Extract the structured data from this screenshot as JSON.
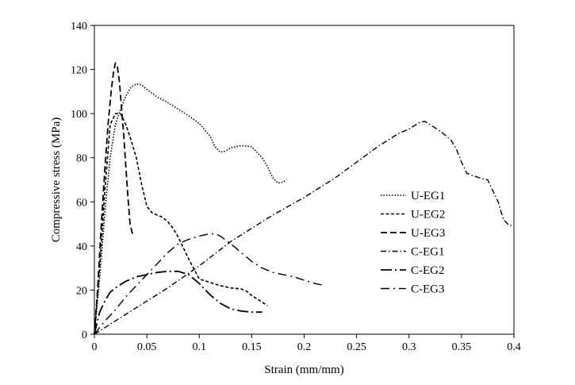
{
  "chart_data": {
    "type": "line",
    "title": "",
    "xlabel": "Strain (mm/mm)",
    "ylabel": "Compressive stress (MPa)",
    "xlim": [
      0,
      0.4
    ],
    "ylim": [
      0,
      140
    ],
    "xticks": [
      0,
      0.05,
      0.1,
      0.15,
      0.2,
      0.25,
      0.3,
      0.35,
      0.4
    ],
    "xtick_labels": [
      "0",
      "0.05",
      "0.1",
      "0.15",
      "0.2",
      "0.25",
      "0.3",
      "0.35",
      "0.4"
    ],
    "yticks": [
      0,
      20,
      40,
      60,
      80,
      100,
      120,
      140
    ],
    "ytick_labels": [
      "0",
      "20",
      "40",
      "60",
      "80",
      "100",
      "120",
      "140"
    ],
    "grid": false,
    "legend_position": "right",
    "line_color": "#000000",
    "series": [
      {
        "name": "U-EG1",
        "dash": "dotted",
        "points": [
          [
            0,
            0
          ],
          [
            0.005,
            25
          ],
          [
            0.01,
            55
          ],
          [
            0.015,
            80
          ],
          [
            0.02,
            95
          ],
          [
            0.025,
            102
          ],
          [
            0.03,
            108
          ],
          [
            0.035,
            112
          ],
          [
            0.04,
            113.5
          ],
          [
            0.045,
            113
          ],
          [
            0.05,
            111
          ],
          [
            0.06,
            107.5
          ],
          [
            0.07,
            105
          ],
          [
            0.08,
            102
          ],
          [
            0.09,
            99
          ],
          [
            0.1,
            95.5
          ],
          [
            0.11,
            90
          ],
          [
            0.115,
            85
          ],
          [
            0.12,
            82.5
          ],
          [
            0.125,
            83
          ],
          [
            0.13,
            84.5
          ],
          [
            0.14,
            85.5
          ],
          [
            0.15,
            85
          ],
          [
            0.16,
            80
          ],
          [
            0.165,
            76
          ],
          [
            0.17,
            71
          ],
          [
            0.175,
            68.5
          ],
          [
            0.18,
            69
          ],
          [
            0.183,
            70
          ]
        ]
      },
      {
        "name": "U-EG2",
        "dash": "dashed",
        "points": [
          [
            0,
            0
          ],
          [
            0.005,
            30
          ],
          [
            0.01,
            65
          ],
          [
            0.015,
            95
          ],
          [
            0.02,
            100
          ],
          [
            0.025,
            100
          ],
          [
            0.03,
            95
          ],
          [
            0.035,
            88
          ],
          [
            0.04,
            80
          ],
          [
            0.045,
            68
          ],
          [
            0.05,
            58
          ],
          [
            0.055,
            55
          ],
          [
            0.06,
            54
          ],
          [
            0.065,
            53
          ],
          [
            0.07,
            51
          ],
          [
            0.075,
            48
          ],
          [
            0.08,
            44
          ],
          [
            0.085,
            39
          ],
          [
            0.09,
            34
          ],
          [
            0.1,
            25
          ],
          [
            0.11,
            23.5
          ],
          [
            0.12,
            22
          ],
          [
            0.13,
            21
          ],
          [
            0.14,
            20.5
          ],
          [
            0.145,
            19.5
          ],
          [
            0.15,
            17.5
          ],
          [
            0.155,
            16
          ],
          [
            0.16,
            14.5
          ],
          [
            0.165,
            13
          ]
        ]
      },
      {
        "name": "U-EG3",
        "dash": "longdash",
        "points": [
          [
            0,
            0
          ],
          [
            0.003,
            20
          ],
          [
            0.006,
            45
          ],
          [
            0.01,
            75
          ],
          [
            0.013,
            95
          ],
          [
            0.016,
            110
          ],
          [
            0.018,
            118
          ],
          [
            0.02,
            123
          ],
          [
            0.022,
            121
          ],
          [
            0.024,
            114
          ],
          [
            0.026,
            102
          ],
          [
            0.028,
            90
          ],
          [
            0.03,
            76
          ],
          [
            0.032,
            62
          ],
          [
            0.034,
            50
          ],
          [
            0.036,
            46
          ],
          [
            0.038,
            45
          ]
        ]
      },
      {
        "name": "C-EG1",
        "dash": "dashdot",
        "points": [
          [
            0,
            0
          ],
          [
            0.01,
            3
          ],
          [
            0.02,
            6
          ],
          [
            0.03,
            9
          ],
          [
            0.05,
            15
          ],
          [
            0.07,
            21
          ],
          [
            0.1,
            31
          ],
          [
            0.13,
            42
          ],
          [
            0.15,
            48
          ],
          [
            0.17,
            54
          ],
          [
            0.2,
            62
          ],
          [
            0.23,
            71
          ],
          [
            0.25,
            78
          ],
          [
            0.27,
            85
          ],
          [
            0.29,
            91
          ],
          [
            0.3,
            93
          ],
          [
            0.31,
            96
          ],
          [
            0.315,
            96.5
          ],
          [
            0.32,
            95
          ],
          [
            0.33,
            92
          ],
          [
            0.34,
            88
          ],
          [
            0.345,
            84
          ],
          [
            0.35,
            78
          ],
          [
            0.355,
            73
          ],
          [
            0.36,
            72
          ],
          [
            0.37,
            70.5
          ],
          [
            0.375,
            70
          ],
          [
            0.38,
            65
          ],
          [
            0.385,
            60
          ],
          [
            0.39,
            52
          ],
          [
            0.395,
            49.5
          ],
          [
            0.4,
            49
          ]
        ]
      },
      {
        "name": "C-EG2",
        "dash": "longdashdot",
        "points": [
          [
            0,
            0
          ],
          [
            0.005,
            10
          ],
          [
            0.01,
            15
          ],
          [
            0.015,
            19
          ],
          [
            0.02,
            21
          ],
          [
            0.03,
            24
          ],
          [
            0.04,
            26
          ],
          [
            0.05,
            27
          ],
          [
            0.06,
            28
          ],
          [
            0.07,
            28.5
          ],
          [
            0.08,
            28.5
          ],
          [
            0.09,
            27
          ],
          [
            0.1,
            23
          ],
          [
            0.11,
            18
          ],
          [
            0.12,
            14
          ],
          [
            0.13,
            11.5
          ],
          [
            0.14,
            10.5
          ],
          [
            0.15,
            10
          ],
          [
            0.16,
            10
          ]
        ]
      },
      {
        "name": "C-EG3",
        "dash": "longdashdotsparse",
        "points": [
          [
            0,
            0
          ],
          [
            0.005,
            3
          ],
          [
            0.01,
            6
          ],
          [
            0.02,
            11
          ],
          [
            0.03,
            17
          ],
          [
            0.04,
            22
          ],
          [
            0.05,
            27
          ],
          [
            0.06,
            32
          ],
          [
            0.07,
            37
          ],
          [
            0.08,
            41
          ],
          [
            0.09,
            43
          ],
          [
            0.1,
            44.5
          ],
          [
            0.11,
            45.5
          ],
          [
            0.115,
            45.5
          ],
          [
            0.12,
            44.5
          ],
          [
            0.13,
            41
          ],
          [
            0.14,
            37
          ],
          [
            0.15,
            33
          ],
          [
            0.16,
            30
          ],
          [
            0.17,
            28
          ],
          [
            0.18,
            27
          ],
          [
            0.19,
            26
          ],
          [
            0.2,
            24.5
          ],
          [
            0.21,
            23
          ],
          [
            0.22,
            22
          ]
        ]
      }
    ]
  }
}
